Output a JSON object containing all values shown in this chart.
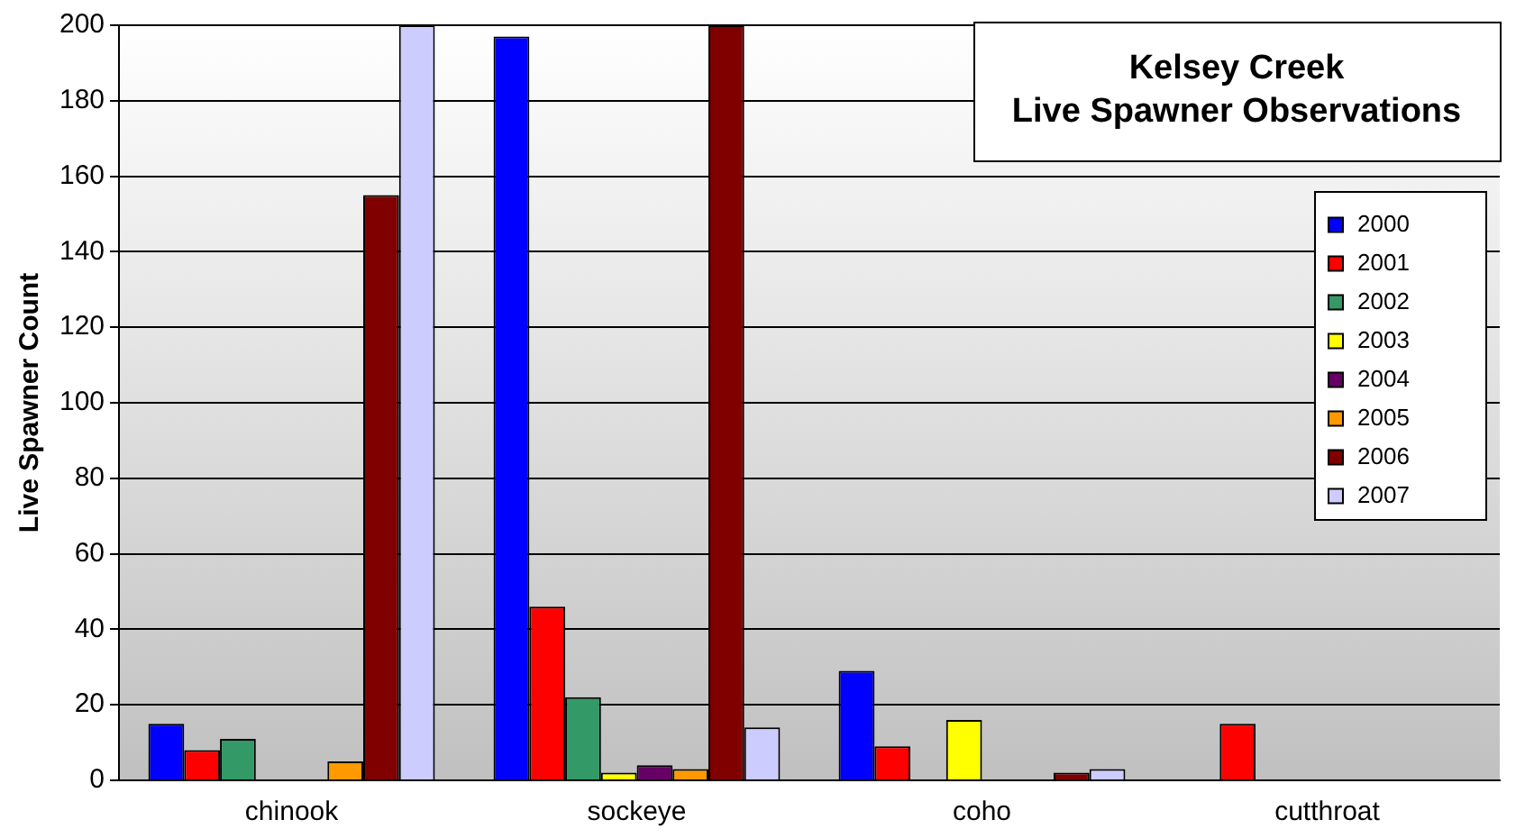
{
  "chart_data": {
    "type": "bar",
    "title": "Kelsey Creek\nLive Spawner Observations",
    "ylabel": "Live Spawner Count",
    "categories": [
      "chinook",
      "sockeye",
      "coho",
      "cutthroat"
    ],
    "series": [
      {
        "name": "2000",
        "color": "#0000ff",
        "values": [
          15,
          197,
          29,
          null
        ]
      },
      {
        "name": "2001",
        "color": "#ff0000",
        "values": [
          8,
          46,
          9,
          15
        ]
      },
      {
        "name": "2002",
        "color": "#339966",
        "values": [
          11,
          22,
          null,
          null
        ]
      },
      {
        "name": "2003",
        "color": "#ffff00",
        "values": [
          null,
          2,
          16,
          null
        ]
      },
      {
        "name": "2004",
        "color": "#660066",
        "values": [
          null,
          4,
          null,
          null
        ]
      },
      {
        "name": "2005",
        "color": "#ff9900",
        "values": [
          5,
          3,
          null,
          null
        ]
      },
      {
        "name": "2006",
        "color": "#800000",
        "values": [
          155,
          200,
          2,
          null
        ]
      },
      {
        "name": "2007",
        "color": "#ccccff",
        "values": [
          200,
          14,
          3,
          null
        ]
      }
    ],
    "ylim": [
      0,
      200
    ],
    "yticks": [
      0,
      20,
      40,
      60,
      80,
      100,
      120,
      140,
      160,
      180,
      200
    ],
    "grid": "y",
    "legend": "top right"
  }
}
